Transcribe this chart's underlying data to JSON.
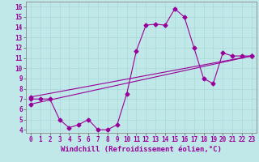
{
  "title": "",
  "xlabel": "Windchill (Refroidissement éolien,°C)",
  "ylabel": "",
  "bg_color": "#c0e8e8",
  "line_color": "#990099",
  "xlim": [
    -0.5,
    23.5
  ],
  "ylim": [
    3.7,
    16.5
  ],
  "xticks": [
    0,
    1,
    2,
    3,
    4,
    5,
    6,
    7,
    8,
    9,
    10,
    11,
    12,
    13,
    14,
    15,
    16,
    17,
    18,
    19,
    20,
    21,
    22,
    23
  ],
  "yticks": [
    4,
    5,
    6,
    7,
    8,
    9,
    10,
    11,
    12,
    13,
    14,
    15,
    16
  ],
  "line1_x": [
    0,
    1,
    2,
    3,
    4,
    5,
    6,
    7,
    8,
    9,
    10,
    11,
    12,
    13,
    14,
    15,
    16,
    17,
    18,
    19,
    20,
    21,
    22,
    23
  ],
  "line1_y": [
    7.0,
    7.0,
    7.0,
    5.0,
    4.2,
    4.5,
    5.0,
    4.0,
    4.0,
    4.5,
    7.5,
    11.7,
    14.2,
    14.3,
    14.2,
    15.8,
    15.0,
    12.0,
    9.0,
    8.5,
    11.5,
    11.2,
    11.2,
    11.2
  ],
  "line2_x": [
    0,
    23
  ],
  "line2_y": [
    6.5,
    11.2
  ],
  "line3_x": [
    0,
    23
  ],
  "line3_y": [
    7.2,
    11.2
  ],
  "marker": "D",
  "markersize": 2.5,
  "linewidth": 0.8,
  "tick_fontsize": 5.5,
  "xlabel_fontsize": 6.5,
  "grid_color": "#a8d8d8",
  "spine_color": "#666666"
}
